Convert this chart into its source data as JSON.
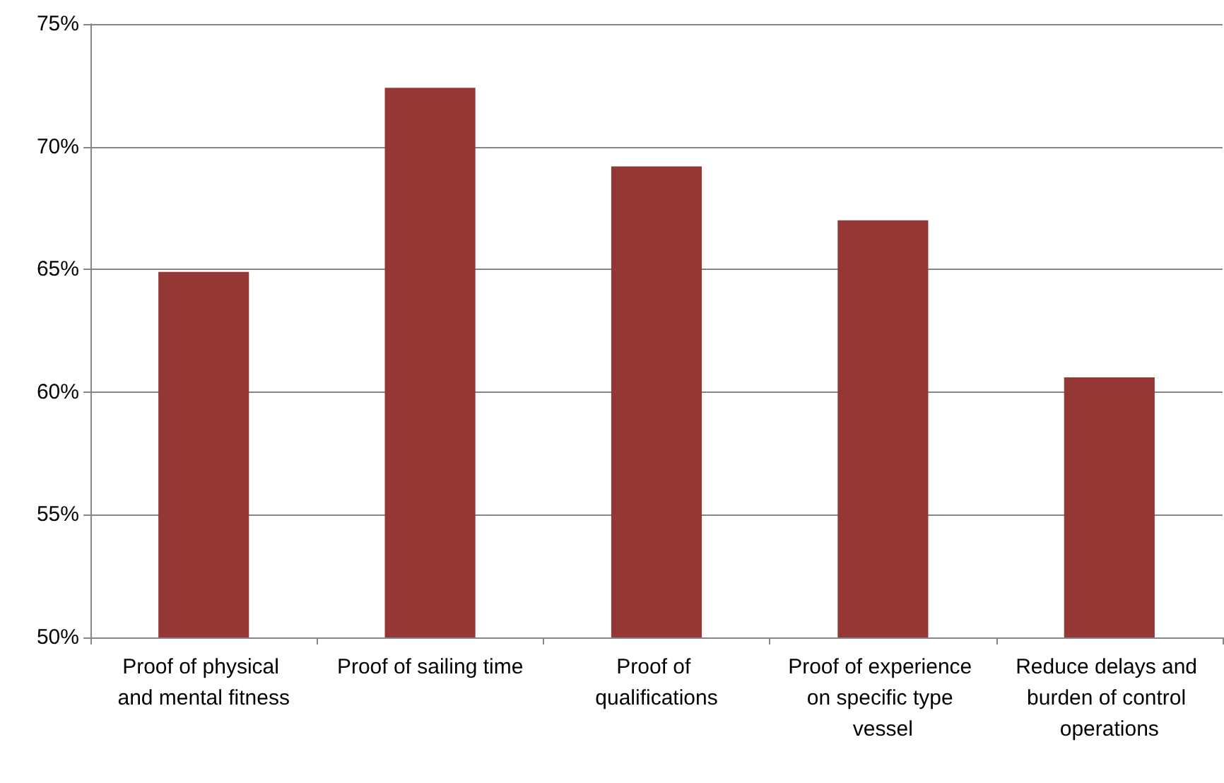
{
  "chart_data": {
    "type": "bar",
    "categories": [
      "Proof of physical and mental fitness",
      "Proof of sailing time",
      "Proof of qualifications",
      "Proof of experience on specific type vessel",
      "Reduce delays and burden of control operations"
    ],
    "values": [
      64.9,
      72.4,
      69.2,
      67.0,
      60.6
    ],
    "color": "#953735",
    "ylim": [
      50,
      75
    ],
    "yticks": [
      {
        "value": 50,
        "label": "50%"
      },
      {
        "value": 55,
        "label": "55%"
      },
      {
        "value": 60,
        "label": "60%"
      },
      {
        "value": 65,
        "label": "65%"
      },
      {
        "value": 70,
        "label": "70%"
      },
      {
        "value": 75,
        "label": "75%"
      }
    ],
    "grid": "y"
  }
}
